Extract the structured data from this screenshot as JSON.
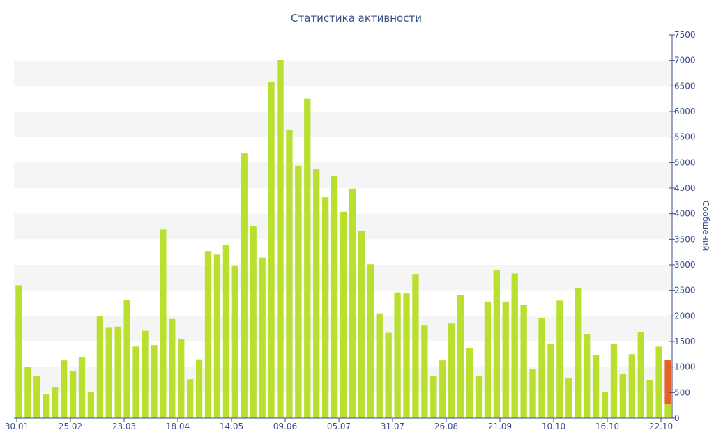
{
  "chart_data": {
    "type": "bar",
    "title": "Статистика активности",
    "ylabel": "Сообщений",
    "xlabel": "",
    "ylim": [
      0,
      7500
    ],
    "y_ticks": [
      0,
      500,
      1000,
      1500,
      2000,
      2500,
      3000,
      3500,
      4000,
      4500,
      5000,
      5500,
      6000,
      6500,
      7000,
      7500
    ],
    "x_tick_labels": [
      "30.01",
      "25.02",
      "23.03",
      "18.04",
      "14.05",
      "09.06",
      "05.07",
      "31.07",
      "26.08",
      "21.09",
      "10.10",
      "16.10",
      "22.10"
    ],
    "grid": "horizontal bands",
    "legend": "none",
    "colors": {
      "bar": "#b9df2f",
      "highlight": "#e6622d",
      "axis": "#3b4f8a",
      "band": "#f5f5f5"
    },
    "series": [
      {
        "values": [
          2600,
          1000,
          820,
          470,
          610,
          1130,
          920,
          1200,
          510,
          1990,
          1780,
          1790,
          2310,
          1400,
          1710,
          1430,
          3690,
          1940,
          1550,
          760,
          1150,
          3270,
          3200,
          3390,
          2990,
          5180,
          3750,
          3140,
          6580,
          7010,
          5640,
          4940,
          6250,
          4880,
          4320,
          4740,
          4040,
          4490,
          3660,
          3010,
          2050,
          1670,
          2460,
          2440,
          2820,
          1810,
          820,
          1130,
          1850,
          2410,
          1370,
          830,
          2280,
          2900,
          2280,
          2830,
          2220,
          960,
          1960,
          1460,
          2300,
          790,
          2550,
          1640,
          1230,
          510,
          1460,
          870,
          1250,
          1680,
          750,
          1400,
          270
        ]
      },
      {
        "values": [
          0,
          0,
          0,
          0,
          0,
          0,
          0,
          0,
          0,
          0,
          0,
          0,
          0,
          0,
          0,
          0,
          0,
          0,
          0,
          0,
          0,
          0,
          0,
          0,
          0,
          0,
          0,
          0,
          0,
          0,
          0,
          0,
          0,
          0,
          0,
          0,
          0,
          0,
          0,
          0,
          0,
          0,
          0,
          0,
          0,
          0,
          0,
          0,
          0,
          0,
          0,
          0,
          0,
          0,
          0,
          0,
          0,
          0,
          0,
          0,
          0,
          0,
          0,
          0,
          0,
          0,
          0,
          0,
          0,
          0,
          0,
          0,
          870
        ]
      }
    ]
  }
}
